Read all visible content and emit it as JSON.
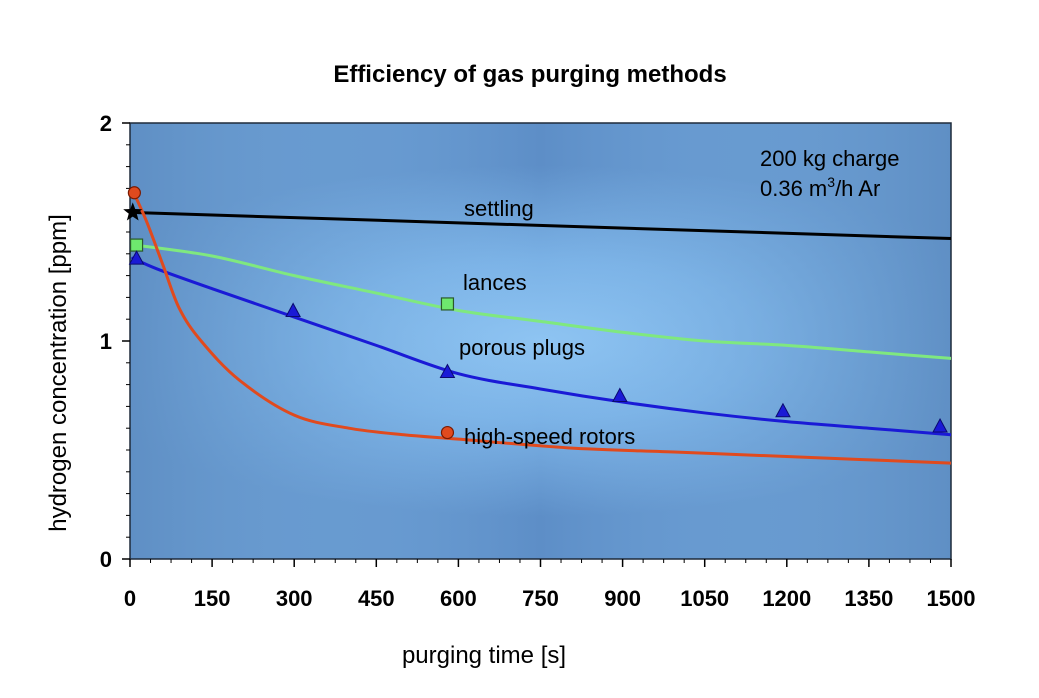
{
  "chart_data": {
    "type": "line",
    "title": "Efficiency of gas purging methods",
    "xlabel": "purging time [s]",
    "ylabel": "hydrogen concentration [ppm]",
    "xlim": [
      0,
      1500
    ],
    "ylim": [
      0,
      2
    ],
    "x_ticks": [
      0,
      150,
      300,
      450,
      600,
      750,
      900,
      1050,
      1200,
      1350,
      1500
    ],
    "x_tick_labels": [
      "0",
      "150",
      "300",
      "450",
      "600",
      "750",
      "900",
      "1050",
      "1200",
      "1350",
      "1500"
    ],
    "y_ticks": [
      0,
      1,
      2
    ],
    "y_tick_labels": [
      "0",
      "1",
      "2"
    ],
    "annotation": {
      "line1": "200 kg charge",
      "line2_prefix": "0.36 m",
      "line2_sup": "3",
      "line2_suffix": "/h Ar"
    },
    "series": [
      {
        "name": "settling",
        "color": "#000000",
        "marker": "star",
        "curve": [
          [
            0,
            1.59
          ],
          [
            1500,
            1.47
          ]
        ],
        "markers": [
          [
            5,
            1.59
          ]
        ],
        "label_at": [
          610,
          1.6
        ]
      },
      {
        "name": "lances",
        "color": "#7fe87f",
        "marker": "square",
        "marker_fill": "#6ee86e",
        "curve": [
          [
            10,
            1.44
          ],
          [
            150,
            1.39
          ],
          [
            300,
            1.3
          ],
          [
            450,
            1.22
          ],
          [
            600,
            1.14
          ],
          [
            750,
            1.09
          ],
          [
            900,
            1.04
          ],
          [
            1050,
            1.0
          ],
          [
            1200,
            0.98
          ],
          [
            1350,
            0.95
          ],
          [
            1500,
            0.92
          ]
        ],
        "markers": [
          [
            12,
            1.44
          ],
          [
            580,
            1.17
          ]
        ],
        "label_at": [
          610,
          1.26
        ]
      },
      {
        "name": "porous plugs",
        "color": "#1a1ad6",
        "marker": "triangle",
        "marker_fill": "#1a1ad6",
        "curve": [
          [
            5,
            1.38
          ],
          [
            50,
            1.33
          ],
          [
            150,
            1.24
          ],
          [
            300,
            1.11
          ],
          [
            450,
            0.98
          ],
          [
            600,
            0.85
          ],
          [
            750,
            0.78
          ],
          [
            900,
            0.72
          ],
          [
            1050,
            0.67
          ],
          [
            1200,
            0.63
          ],
          [
            1350,
            0.6
          ],
          [
            1500,
            0.57
          ]
        ],
        "markers": [
          [
            12,
            1.38
          ],
          [
            298,
            1.14
          ],
          [
            580,
            0.86
          ],
          [
            895,
            0.75
          ],
          [
            1193,
            0.68
          ],
          [
            1480,
            0.61
          ]
        ],
        "label_at": [
          602,
          0.95
        ]
      },
      {
        "name": "high-speed rotors",
        "color": "#e04a1e",
        "marker": "circle",
        "marker_fill": "#e04a1e",
        "curve": [
          [
            5,
            1.69
          ],
          [
            30,
            1.55
          ],
          [
            60,
            1.35
          ],
          [
            90,
            1.15
          ],
          [
            130,
            1.0
          ],
          [
            200,
            0.82
          ],
          [
            300,
            0.66
          ],
          [
            400,
            0.6
          ],
          [
            500,
            0.57
          ],
          [
            600,
            0.55
          ],
          [
            800,
            0.51
          ],
          [
            1000,
            0.49
          ],
          [
            1200,
            0.47
          ],
          [
            1500,
            0.44
          ]
        ],
        "markers": [
          [
            8,
            1.68
          ],
          [
            580,
            0.58
          ]
        ],
        "label_at": [
          625,
          0.55
        ]
      }
    ]
  }
}
